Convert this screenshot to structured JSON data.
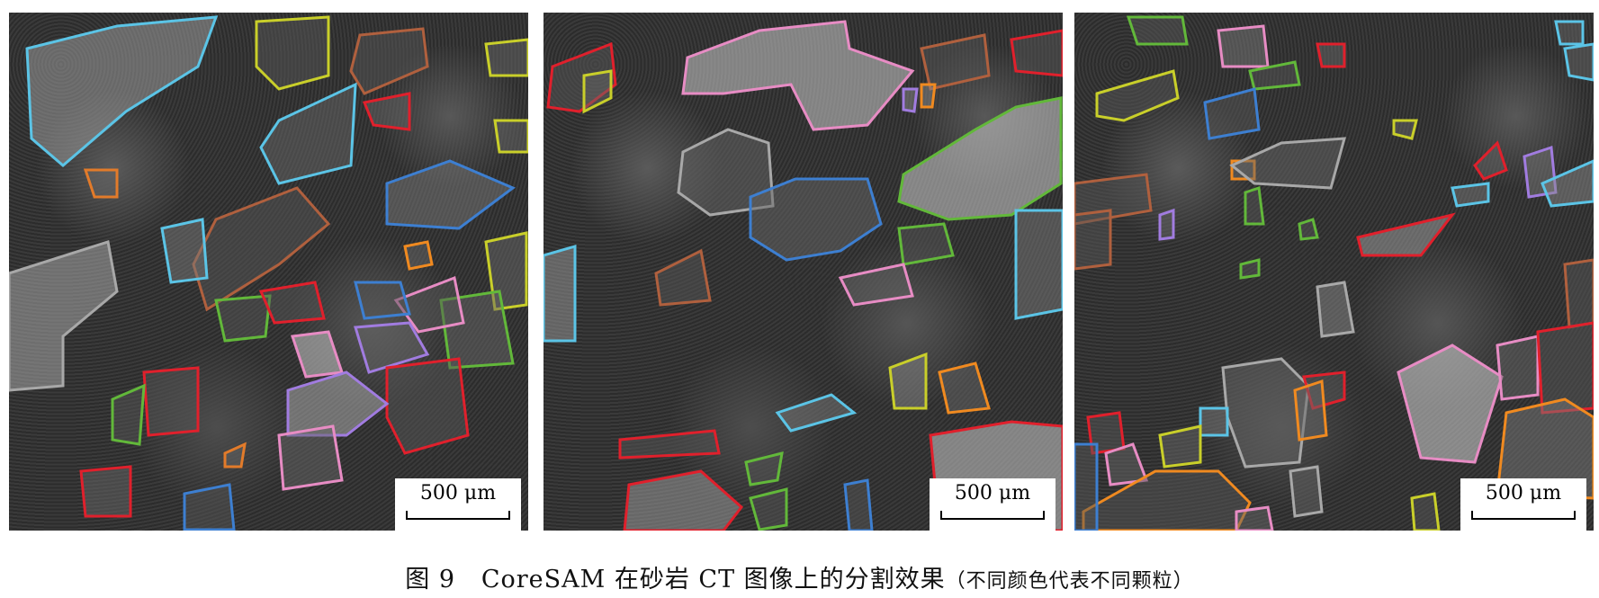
{
  "panels": [
    {
      "scale_label": "500 μm"
    },
    {
      "scale_label": "500 μm"
    },
    {
      "scale_label": "500 μm"
    }
  ],
  "caption": {
    "figure_label": "图 9",
    "main": "CoreSAM 在砂岩 CT 图像上的分割效果",
    "note": "（不同颜色代表不同颗粒）"
  },
  "outline_colors": [
    "#5bc4e6",
    "#c9cf2a",
    "#b0603e",
    "#e0202c",
    "#3d7fd1",
    "#e27b2a",
    "#62b83a",
    "#e78cc4",
    "#a17ce0",
    "#a8a8a8",
    "#f08a20"
  ]
}
